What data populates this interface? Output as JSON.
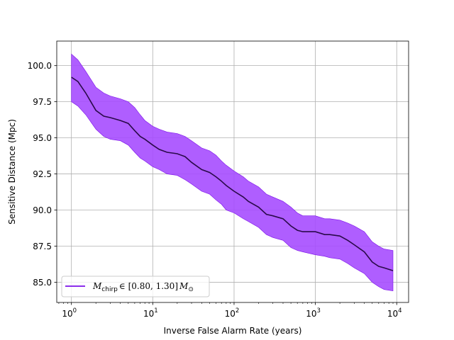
{
  "chart_data": {
    "type": "line",
    "title": "",
    "xlabel": "Inverse False Alarm Rate (years)",
    "ylabel": "Sensitive Distance (Mpc)",
    "xscale": "log",
    "xlim": [
      0.66,
      14000
    ],
    "ylim": [
      83.6,
      101.7
    ],
    "grid": true,
    "legend_placement": "lower-left",
    "xticks": [
      {
        "value": 1,
        "base": "10",
        "exp": "0"
      },
      {
        "value": 10,
        "base": "10",
        "exp": "1"
      },
      {
        "value": 100,
        "base": "10",
        "exp": "2"
      },
      {
        "value": 1000,
        "base": "10",
        "exp": "3"
      },
      {
        "value": 10000,
        "base": "10",
        "exp": "4"
      }
    ],
    "yticks": [
      {
        "value": 85.0,
        "label": "85.0"
      },
      {
        "value": 87.5,
        "label": "87.5"
      },
      {
        "value": 90.0,
        "label": "90.0"
      },
      {
        "value": 92.5,
        "label": "92.5"
      },
      {
        "value": 95.0,
        "label": "95.0"
      },
      {
        "value": 97.5,
        "label": "97.5"
      },
      {
        "value": 100.0,
        "label": "100.0"
      }
    ],
    "series": [
      {
        "legend": {
          "symbol": "M",
          "subscript": "chirp",
          "range": "∈ [0.80, 1.30]",
          "unit": "M",
          "unit_sub": "⊙"
        },
        "line_color": "#7b10e8",
        "center_color": "#2a0a4a",
        "band_color": "#a64dff",
        "x": [
          1,
          1.2,
          1.5,
          2,
          2.5,
          3,
          4,
          5,
          6,
          7,
          8,
          10,
          12,
          15,
          20,
          25,
          30,
          40,
          50,
          60,
          70,
          80,
          100,
          130,
          150,
          200,
          250,
          300,
          400,
          500,
          600,
          700,
          1000,
          1300,
          1500,
          2000,
          2500,
          3000,
          4000,
          5000,
          6000,
          7000,
          9000
        ],
        "y": [
          99.2,
          98.9,
          98.1,
          96.9,
          96.5,
          96.4,
          96.2,
          96.0,
          95.5,
          95.1,
          94.9,
          94.5,
          94.2,
          94.0,
          93.9,
          93.7,
          93.3,
          92.8,
          92.6,
          92.3,
          92.0,
          91.7,
          91.3,
          90.9,
          90.6,
          90.2,
          89.7,
          89.6,
          89.4,
          88.9,
          88.6,
          88.5,
          88.5,
          88.3,
          88.3,
          88.2,
          87.9,
          87.6,
          87.1,
          86.4,
          86.1,
          86.0,
          85.8
        ],
        "upper": [
          100.8,
          100.4,
          99.6,
          98.5,
          98.1,
          97.9,
          97.7,
          97.5,
          97.1,
          96.6,
          96.2,
          95.8,
          95.6,
          95.4,
          95.3,
          95.1,
          94.8,
          94.3,
          94.1,
          93.8,
          93.4,
          93.1,
          92.7,
          92.3,
          92.0,
          91.6,
          91.1,
          90.9,
          90.6,
          90.2,
          89.8,
          89.6,
          89.6,
          89.4,
          89.4,
          89.3,
          89.1,
          88.9,
          88.5,
          87.8,
          87.5,
          87.3,
          87.2
        ],
        "lower": [
          97.5,
          97.2,
          96.6,
          95.6,
          95.1,
          94.9,
          94.8,
          94.5,
          94.0,
          93.6,
          93.4,
          93.0,
          92.8,
          92.5,
          92.4,
          92.1,
          91.8,
          91.3,
          91.1,
          90.7,
          90.4,
          90.0,
          89.8,
          89.4,
          89.2,
          88.8,
          88.3,
          88.1,
          87.9,
          87.4,
          87.2,
          87.1,
          86.9,
          86.8,
          86.7,
          86.6,
          86.3,
          86.0,
          85.6,
          85.0,
          84.7,
          84.5,
          84.4
        ]
      }
    ]
  }
}
